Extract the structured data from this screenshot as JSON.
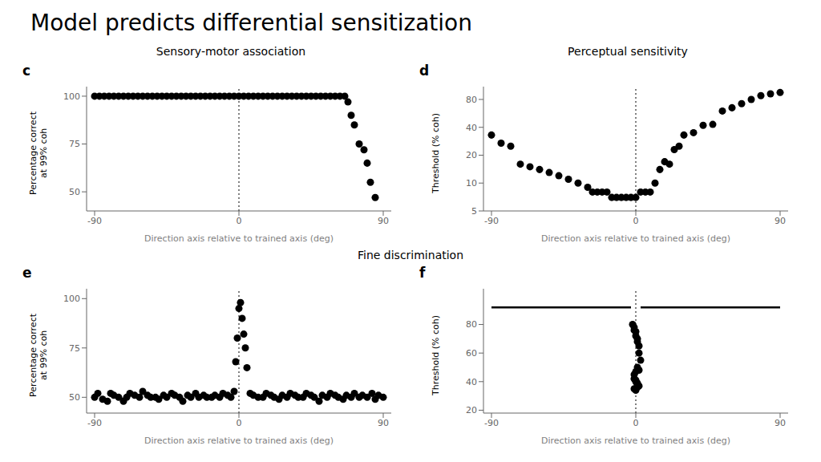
{
  "title": "Model predicts differential sensitization",
  "annotations": [
    "Sensory-motor association",
    "Perceptual sensitivity",
    "Fine discrimination"
  ],
  "chart_data": [
    {
      "type": "scatter",
      "title": "c",
      "xlabel": "Direction axis relative to trained axis (deg)",
      "ylabel": "Percentage correct\nat 99% coh",
      "xlim": [
        -95,
        95
      ],
      "xticks": [
        -90,
        0,
        90
      ],
      "ylim": [
        40,
        105
      ],
      "yticks": [
        50,
        75,
        100
      ],
      "grid": false,
      "vline": 0,
      "series": [
        {
          "type": "scatter",
          "color": "black",
          "x": [
            -90,
            -87,
            -84,
            -81,
            -78,
            -75,
            -72,
            -69,
            -66,
            -63,
            -60,
            -57,
            -54,
            -51,
            -48,
            -45,
            -42,
            -39,
            -36,
            -33,
            -30,
            -27,
            -24,
            -21,
            -18,
            -15,
            -12,
            -9,
            -6,
            -3,
            0,
            3,
            6,
            9,
            12,
            15,
            18,
            21,
            24,
            27,
            30,
            33,
            36,
            39,
            42,
            45,
            48,
            51,
            54,
            57,
            60,
            63,
            66,
            68,
            70,
            72,
            75,
            78,
            80,
            82,
            85
          ],
          "values": [
            100,
            100,
            100,
            100,
            100,
            100,
            100,
            100,
            100,
            100,
            100,
            100,
            100,
            100,
            100,
            100,
            100,
            100,
            100,
            100,
            100,
            100,
            100,
            100,
            100,
            100,
            100,
            100,
            100,
            100,
            100,
            100,
            100,
            100,
            100,
            100,
            100,
            100,
            100,
            100,
            100,
            100,
            100,
            100,
            100,
            100,
            100,
            100,
            100,
            100,
            100,
            100,
            100,
            97,
            90,
            85,
            75,
            72,
            65,
            55,
            47
          ]
        }
      ]
    },
    {
      "type": "scatter",
      "title": "d",
      "xlabel": "Direction axis relative to trained axis (deg)",
      "ylabel": "Threshold (% coh)",
      "xlim": [
        -95,
        95
      ],
      "xticks": [
        -90,
        0,
        90
      ],
      "ylim": [
        5,
        110
      ],
      "yticks": [
        5,
        10,
        20,
        40,
        80
      ],
      "log": "y",
      "grid": false,
      "vline": 0,
      "series": [
        {
          "type": "scatter",
          "color": "black",
          "x": [
            -90,
            -84,
            -78,
            -72,
            -66,
            -60,
            -54,
            -48,
            -42,
            -36,
            -30,
            -27,
            -24,
            -21,
            -18,
            -15,
            -12,
            -9,
            -6,
            -3,
            0,
            3,
            6,
            9,
            12,
            15,
            18,
            21,
            24,
            27,
            30,
            36,
            42,
            48,
            54,
            60,
            66,
            72,
            78,
            84,
            90
          ],
          "values": [
            33,
            27,
            25,
            16,
            15,
            14,
            13,
            12,
            11,
            10,
            9,
            8,
            8,
            8,
            8,
            7,
            7,
            7,
            7,
            7,
            7,
            8,
            8,
            8,
            10,
            14,
            17,
            16,
            23,
            25,
            33,
            35,
            42,
            43,
            60,
            65,
            72,
            80,
            88,
            92,
            95
          ]
        }
      ]
    },
    {
      "type": "scatter",
      "title": "e",
      "xlabel": "Direction axis relative to trained axis (deg)",
      "ylabel": "Percentage correct\nat 99% coh",
      "xlim": [
        -95,
        95
      ],
      "xticks": [
        -90,
        0,
        90
      ],
      "ylim": [
        42,
        105
      ],
      "yticks": [
        50,
        75,
        100
      ],
      "grid": false,
      "vline": 0,
      "series": [
        {
          "type": "scatter",
          "color": "black",
          "x": [
            -90,
            -88,
            -85,
            -82,
            -80,
            -78,
            -75,
            -72,
            -70,
            -68,
            -65,
            -62,
            -60,
            -57,
            -55,
            -52,
            -50,
            -47,
            -45,
            -42,
            -40,
            -37,
            -35,
            -32,
            -30,
            -27,
            -25,
            -22,
            -20,
            -17,
            -15,
            -12,
            -10,
            -7,
            -5,
            -3,
            -2,
            -1,
            0,
            1,
            2,
            3,
            4,
            5,
            7,
            9,
            12,
            15,
            17,
            20,
            22,
            25,
            27,
            30,
            32,
            35,
            37,
            40,
            42,
            45,
            47,
            50,
            52,
            55,
            57,
            60,
            62,
            65,
            67,
            70,
            72,
            75,
            77,
            80,
            83,
            85,
            87,
            90
          ],
          "values": [
            50,
            52,
            49,
            48,
            52,
            51,
            50,
            48,
            50,
            52,
            51,
            50,
            53,
            51,
            50,
            50,
            49,
            51,
            50,
            52,
            51,
            50,
            48,
            51,
            50,
            52,
            50,
            51,
            50,
            50,
            51,
            50,
            52,
            51,
            50,
            53,
            68,
            80,
            95,
            98,
            90,
            82,
            75,
            65,
            52,
            51,
            50,
            50,
            52,
            51,
            50,
            49,
            51,
            50,
            52,
            51,
            50,
            50,
            52,
            51,
            50,
            48,
            51,
            50,
            52,
            51,
            50,
            49,
            51,
            50,
            52,
            50,
            51,
            50,
            52,
            49,
            51,
            50
          ]
        }
      ]
    },
    {
      "type": "scatter",
      "title": "f",
      "xlabel": "Direction axis relative to trained axis (deg)",
      "ylabel": "Threshold (% coh)",
      "xlim": [
        -95,
        95
      ],
      "xticks": [
        -90,
        0,
        90
      ],
      "ylim": [
        18,
        105
      ],
      "yticks": [
        20,
        40,
        60,
        80
      ],
      "grid": false,
      "vline": 0,
      "series": [
        {
          "type": "line",
          "color": "black",
          "x": [
            -90,
            -3
          ],
          "values": [
            92,
            92
          ]
        },
        {
          "type": "line",
          "color": "black",
          "x": [
            3,
            90
          ],
          "values": [
            92,
            92
          ]
        },
        {
          "type": "scatter",
          "color": "black",
          "x": [
            -2,
            -1,
            -1,
            0,
            0,
            1,
            1,
            2,
            2,
            3,
            -1,
            0,
            0,
            1,
            1,
            2,
            -1,
            0,
            1,
            2,
            -1,
            0,
            1
          ],
          "values": [
            80,
            78,
            76,
            75,
            72,
            70,
            68,
            65,
            60,
            55,
            42,
            40,
            41,
            39,
            38,
            37,
            45,
            47,
            50,
            48,
            35,
            34,
            36
          ]
        }
      ]
    }
  ]
}
